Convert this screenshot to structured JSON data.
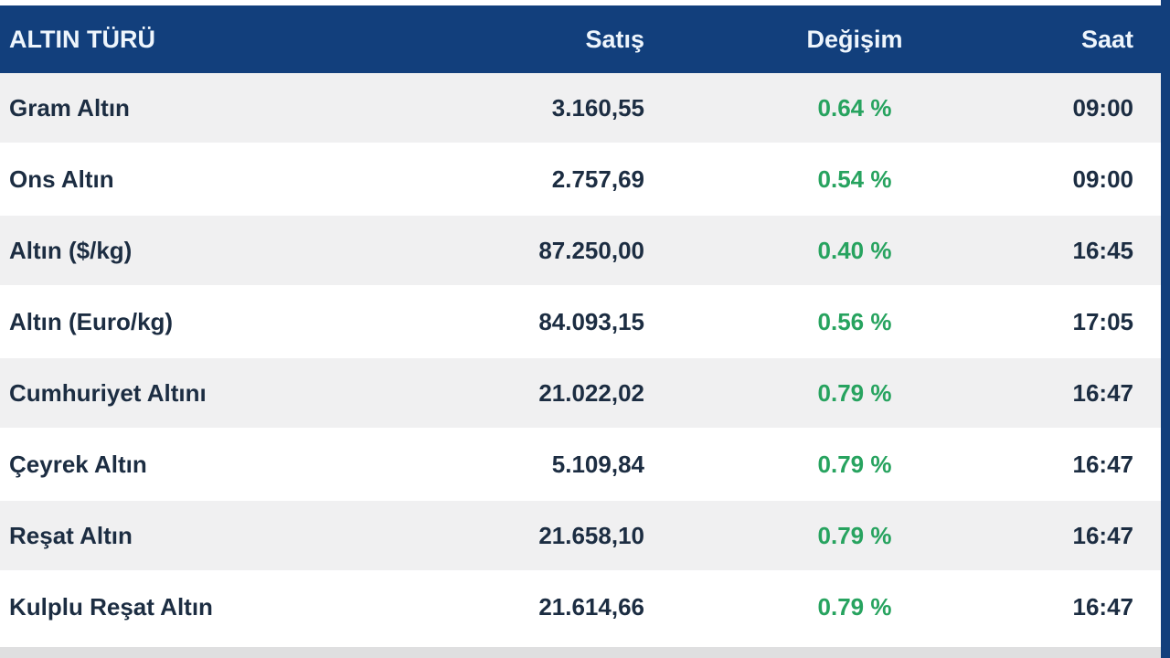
{
  "chart_data": {
    "type": "table",
    "title": "Gold prices table (Turkish)",
    "columns": [
      "ALTIN TÜRÜ",
      "Satış",
      "Değişim",
      "Saat"
    ],
    "rows": [
      [
        "Gram Altın",
        "3.160,55",
        "0.64 %",
        "09:00"
      ],
      [
        "Ons Altın",
        "2.757,69",
        "0.54 %",
        "09:00"
      ],
      [
        "Altın ($/kg)",
        "87.250,00",
        "0.40 %",
        "16:45"
      ],
      [
        "Altın (Euro/kg)",
        "84.093,15",
        "0.56 %",
        "17:05"
      ],
      [
        "Cumhuriyet Altını",
        "21.022,02",
        "0.79 %",
        "16:47"
      ],
      [
        "Çeyrek Altın",
        "5.109,84",
        "0.79 %",
        "16:47"
      ],
      [
        "Reşat Altın",
        "21.658,10",
        "0.79 %",
        "16:47"
      ],
      [
        "Kulplu Reşat Altın",
        "21.614,66",
        "0.79 %",
        "16:47"
      ]
    ],
    "layout_hints": {
      "alternating_rows": true,
      "change_column_color": "positive-green"
    }
  },
  "colors": {
    "header_bg": "#123f7c",
    "header_text": "#eef5fc",
    "row_text": "#1c2d42",
    "change_positive": "#27a35f",
    "row_bg": "#ffffff",
    "row_alt_bg": "#f0f0f1",
    "bottom_strip": "#dfdfe0"
  }
}
